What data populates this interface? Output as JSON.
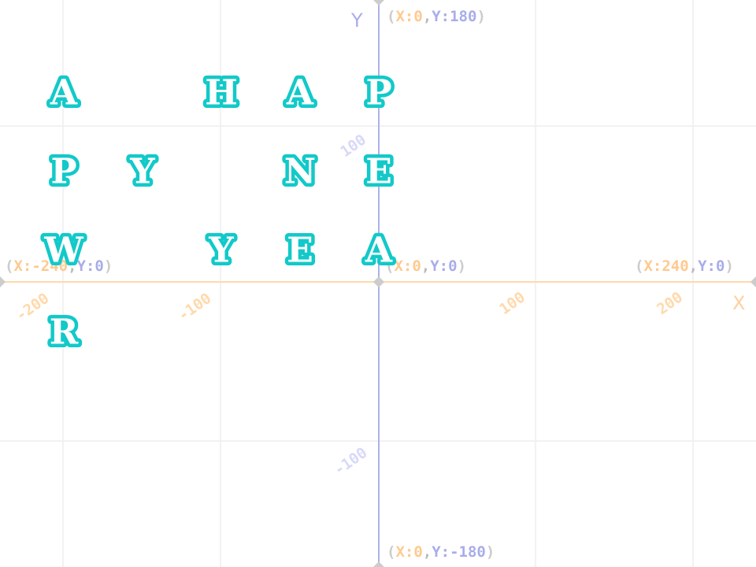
{
  "axes": {
    "x_name": "X",
    "y_name": "Y",
    "x_ticks": [
      "-200",
      "-100",
      "100",
      "200"
    ],
    "y_ticks": [
      "100",
      "-100"
    ],
    "colors": {
      "x_axis": "#ffd9ac",
      "y_axis": "#aeb1ea",
      "grid": "#eeeeee"
    }
  },
  "coord_labels": [
    {
      "x": "X:-240",
      "y": "Y:0"
    },
    {
      "x": "X:0",
      "y": "Y:0"
    },
    {
      "x": "X:240",
      "y": "Y:0"
    },
    {
      "x": "X:0",
      "y": "Y:180"
    },
    {
      "x": "X:0",
      "y": "Y:-180"
    }
  ],
  "letter_sprites": [
    {
      "letter": "A",
      "x": -200,
      "y": 120
    },
    {
      "letter": "H",
      "x": -100,
      "y": 120
    },
    {
      "letter": "A",
      "x": -50,
      "y": 120
    },
    {
      "letter": "P",
      "x": 0,
      "y": 120
    },
    {
      "letter": "P",
      "x": -200,
      "y": 70
    },
    {
      "letter": "Y",
      "x": -150,
      "y": 70
    },
    {
      "letter": "N",
      "x": -50,
      "y": 70
    },
    {
      "letter": "E",
      "x": 0,
      "y": 70
    },
    {
      "letter": "W",
      "x": -200,
      "y": 20
    },
    {
      "letter": "Y",
      "x": -100,
      "y": 20
    },
    {
      "letter": "E",
      "x": -50,
      "y": 20
    },
    {
      "letter": "A",
      "x": 0,
      "y": 20
    },
    {
      "letter": "R",
      "x": -200,
      "y": -32
    }
  ],
  "sprite_color": "#12c9c9"
}
